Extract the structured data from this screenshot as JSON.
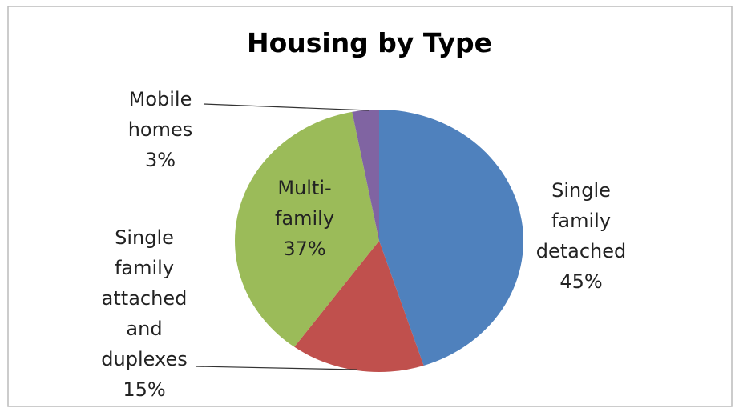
{
  "chart_data": {
    "type": "pie",
    "title": "Housing by Type",
    "categories": [
      "Single family detached",
      "Single family attached and duplexes",
      "Multi-family",
      "Mobile homes"
    ],
    "values": [
      45,
      15,
      37,
      3
    ],
    "value_labels": [
      "45%",
      "15%",
      "37%",
      "3%"
    ],
    "colors": [
      "#4f81bd",
      "#c0504d",
      "#9bbb59",
      "#8064a2"
    ]
  }
}
